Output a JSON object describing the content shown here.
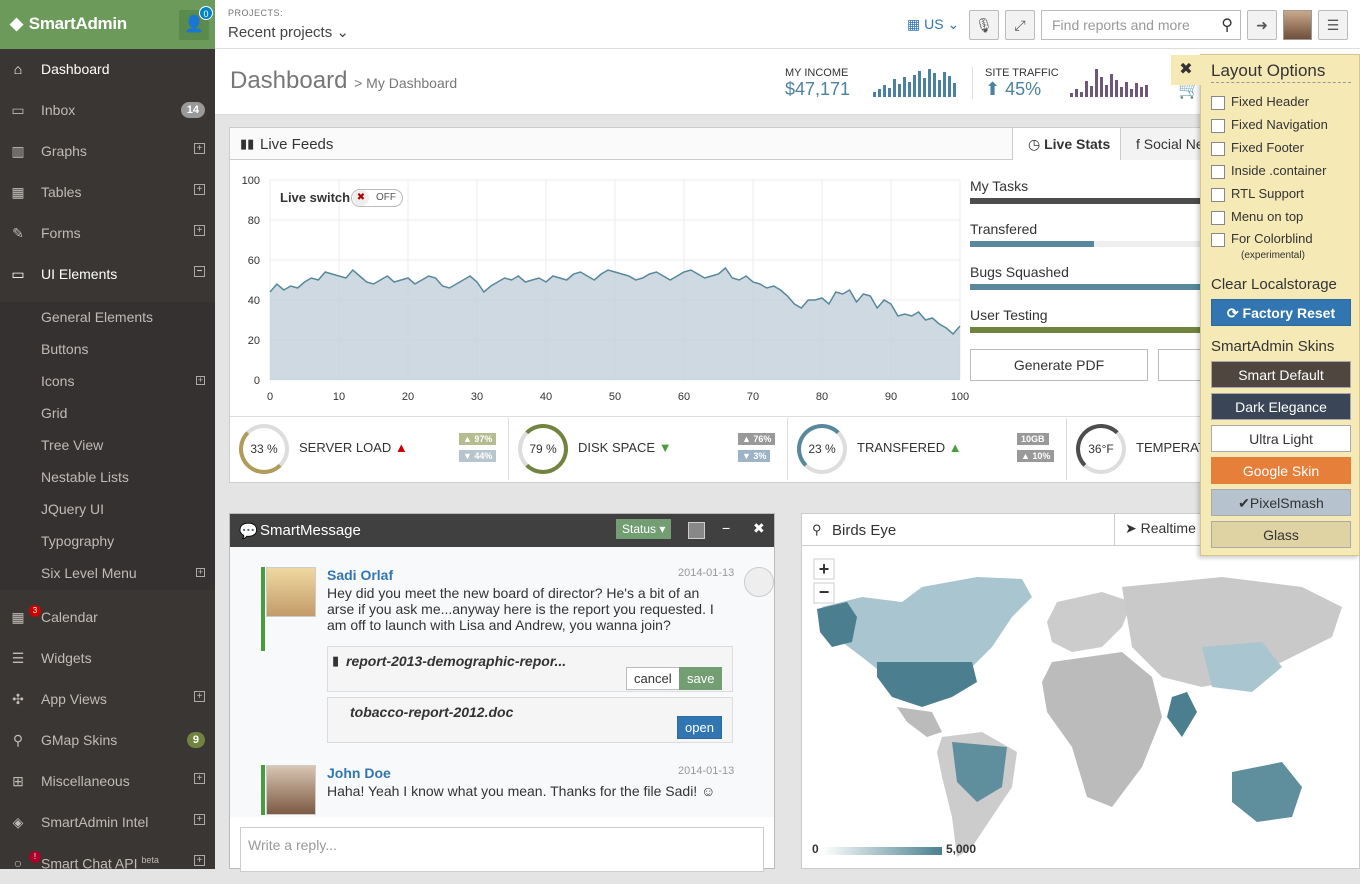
{
  "brand": {
    "name": "SmartAdmin",
    "notifications": "0"
  },
  "header": {
    "projects_label": "PROJECTS:",
    "projects_select": "Recent projects",
    "lang": "US",
    "search_placeholder": "Find reports and more"
  },
  "sidebar": {
    "items": [
      {
        "label": "Dashboard"
      },
      {
        "label": "Inbox",
        "badge": "14"
      },
      {
        "label": "Graphs"
      },
      {
        "label": "Tables"
      },
      {
        "label": "Forms"
      },
      {
        "label": "UI Elements"
      },
      {
        "label": "Calendar",
        "badge": "3"
      },
      {
        "label": "Widgets"
      },
      {
        "label": "App Views"
      },
      {
        "label": "GMap Skins",
        "badge": "9"
      },
      {
        "label": "Miscellaneous"
      },
      {
        "label": "SmartAdmin Intel"
      },
      {
        "label": "Smart Chat API",
        "suffix": "beta",
        "badge": "!"
      }
    ],
    "sub": [
      "General Elements",
      "Buttons",
      "Icons",
      "Grid",
      "Tree View",
      "Nestable Lists",
      "JQuery UI",
      "Typography",
      "Six Level Menu"
    ]
  },
  "ribbon": {
    "title": "Dashboard",
    "crumb": "> My Dashboard",
    "income_label": "MY INCOME",
    "income_value": "$47,171",
    "traffic_label": "SITE TRAFFIC",
    "traffic_value": "45%"
  },
  "live": {
    "title": "Live Feeds",
    "tab_stats": "Live Stats",
    "tab_social": "Social Ne",
    "switch_label": "Live switch",
    "switch_state": "OFF",
    "tasks": [
      "My Tasks",
      "Transfered",
      "Bugs Squashed",
      "User Testing"
    ],
    "generate_pdf": "Generate PDF"
  },
  "chart_data": {
    "type": "area",
    "x_ticks": [
      0,
      10,
      20,
      30,
      40,
      50,
      60,
      70,
      80,
      90,
      100
    ],
    "y_ticks": [
      0,
      20,
      40,
      60,
      80,
      100
    ],
    "ylim": [
      0,
      100
    ],
    "xlim": [
      0,
      100
    ],
    "values": [
      44,
      48,
      45,
      47,
      46,
      49,
      51,
      50,
      54,
      53,
      52,
      51,
      55,
      52,
      49,
      48,
      50,
      52,
      49,
      50,
      51,
      48,
      50,
      52,
      51,
      47,
      46,
      48,
      50,
      52,
      49,
      44,
      47,
      49,
      51,
      50,
      52,
      49,
      50,
      51,
      49,
      52,
      51,
      50,
      53,
      54,
      52,
      50,
      53,
      55,
      54,
      53,
      52,
      50,
      51,
      53,
      54,
      52,
      50,
      52,
      54,
      55,
      53,
      51,
      52,
      53,
      56,
      51,
      50,
      52,
      49,
      48,
      46,
      47,
      45,
      42,
      38,
      36,
      40,
      40,
      41,
      38,
      44,
      43,
      45,
      39,
      43,
      42,
      36,
      40,
      38,
      32,
      33,
      32,
      34,
      30,
      31,
      28,
      26,
      23,
      27
    ]
  },
  "stats_row": [
    {
      "pct": "33 %",
      "name": "SERVER LOAD",
      "dir": "up",
      "up": "97%",
      "down": "44%"
    },
    {
      "pct": "79 %",
      "name": "DISK SPACE",
      "dir": "down",
      "up": "76%",
      "down": "3%"
    },
    {
      "pct": "23 %",
      "name": "TRANSFERED",
      "dir": "up",
      "up": "10GB",
      "down": "10%"
    },
    {
      "pct": "36°F",
      "name": "TEMPERAT"
    }
  ],
  "message": {
    "title": "SmartMessage",
    "status": "Status",
    "m1": {
      "name": "Sadi Orlaf",
      "date": "2014-01-13",
      "text": "Hey did you meet the new board of director? He's a bit of an arse if you ask me...anyway here is the report you requested. I am off to launch with Lisa and Andrew, you wanna join?"
    },
    "att1": "report-2013-demographic-repor...",
    "att2": "tobacco-report-2012.doc",
    "cancel": "cancel",
    "save": "save",
    "open": "open",
    "m2": {
      "name": "John Doe",
      "date": "2014-01-13",
      "text": "Haha! Yeah I know what you mean. Thanks for the file Sadi! ☺"
    },
    "reply_placeholder": "Write a reply..."
  },
  "map": {
    "title": "Birds Eye",
    "realtime": "Realtime",
    "legend_min": "0",
    "legend_max": "5,000"
  },
  "layout_options": {
    "title": "Layout Options",
    "checks": [
      "Fixed Header",
      "Fixed Navigation",
      "Fixed Footer",
      "Inside .container",
      "RTL Support",
      "Menu on top",
      "For Colorblind"
    ],
    "experimental": "(experimental)",
    "clear": "Clear Localstorage",
    "reset": "Factory Reset",
    "skins_title": "SmartAdmin Skins",
    "skins": [
      {
        "label": "Smart Default",
        "bg": "#4e463f",
        "fg": "#ffffff"
      },
      {
        "label": "Dark Elegance",
        "bg": "#3a4558",
        "fg": "#ffffff"
      },
      {
        "label": "Ultra Light",
        "bg": "#ffffff",
        "fg": "#333333"
      },
      {
        "label": "Google Skin",
        "bg": "#e67f3a",
        "fg": "#ffffff"
      },
      {
        "label": "PixelSmash",
        "bg": "#b6c2cd",
        "fg": "#333333"
      },
      {
        "label": "Glass",
        "bg": "#e0d3a3",
        "fg": "#333333"
      }
    ]
  }
}
